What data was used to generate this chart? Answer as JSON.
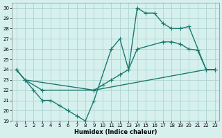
{
  "xlabel": "Humidex (Indice chaleur)",
  "bg_color": "#d6f0ee",
  "grid_color": "#aed4cf",
  "line_color": "#1a7a6e",
  "xlim": [
    -0.5,
    23.5
  ],
  "ylim": [
    19,
    30.5
  ],
  "xticks": [
    0,
    1,
    2,
    3,
    4,
    5,
    6,
    7,
    8,
    9,
    10,
    11,
    12,
    13,
    14,
    15,
    16,
    17,
    18,
    19,
    20,
    21,
    22,
    23
  ],
  "yticks": [
    19,
    20,
    21,
    22,
    23,
    24,
    25,
    26,
    27,
    28,
    29,
    30
  ],
  "line1_x": [
    0,
    2,
    3,
    4,
    5,
    6,
    7,
    8,
    9,
    11,
    12,
    13,
    14,
    15,
    16,
    17,
    18,
    19,
    20,
    22,
    23
  ],
  "line1_y": [
    24,
    22,
    21,
    21,
    20.5,
    20,
    19.5,
    19,
    21,
    26,
    27.0,
    24.0,
    30,
    29.5,
    29.5,
    28.5,
    28,
    28,
    28.2,
    24,
    24
  ],
  "line2_x": [
    0,
    1,
    3,
    9,
    10,
    11,
    12,
    13,
    14,
    17,
    18,
    19,
    20,
    21,
    22,
    23
  ],
  "line2_y": [
    24,
    23,
    22,
    22,
    22.5,
    23,
    23.5,
    24,
    26,
    26.7,
    26.7,
    26.5,
    26,
    25.9,
    24,
    24
  ],
  "line3_x": [
    0,
    1,
    9,
    22,
    23
  ],
  "line3_y": [
    24,
    23,
    22,
    24,
    24
  ],
  "marker": "+",
  "marker_size": 4,
  "line_width": 1.0
}
